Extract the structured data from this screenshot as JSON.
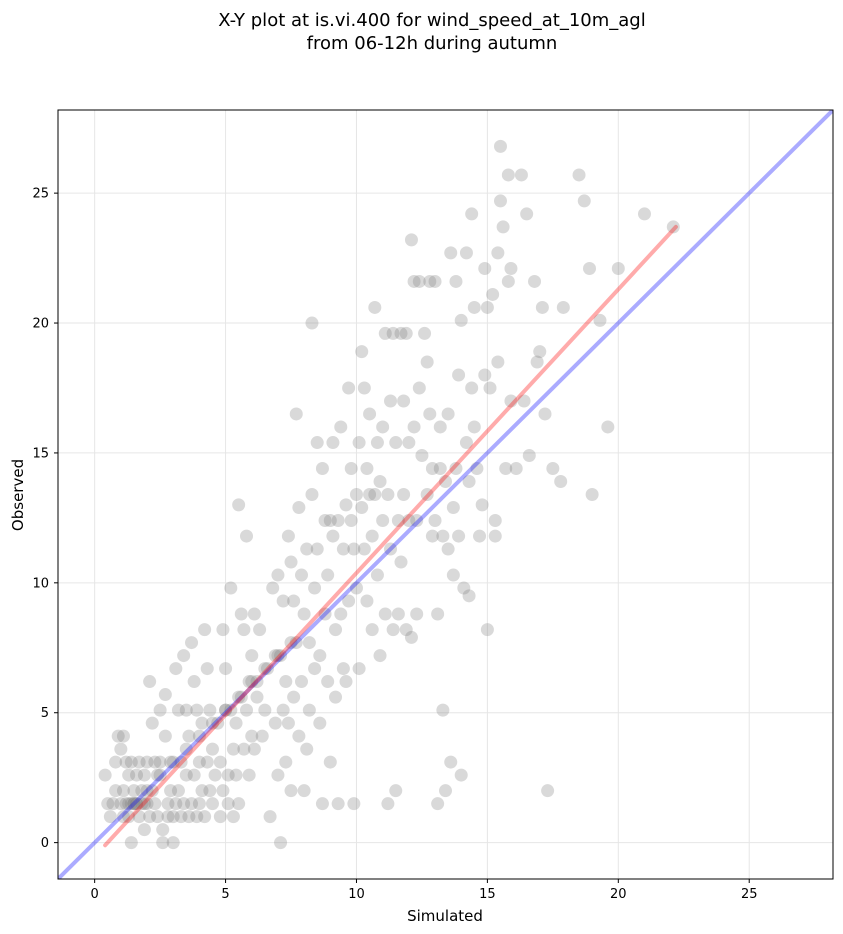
{
  "chart_data": {
    "type": "scatter",
    "title_line1": "X-Y plot at is.vi.400 for wind_speed_at_10m_agl",
    "title_line2": "from 06-12h during autumn",
    "xlabel": "Simulated",
    "ylabel": "Observed",
    "xlim": [
      -1.4,
      28.2
    ],
    "ylim": [
      -1.4,
      28.2
    ],
    "xticks": [
      0,
      5,
      10,
      15,
      20,
      25
    ],
    "yticks": [
      0,
      5,
      10,
      15,
      20,
      25
    ],
    "grid": true,
    "point_color": "#808080",
    "identity_line_color": "#0000ff",
    "fit_line_color": "#ff0000",
    "fit_line": {
      "x": [
        0.4,
        22.2
      ],
      "y": [
        -0.1,
        23.7
      ]
    },
    "points": [
      [
        0.4,
        2.6
      ],
      [
        0.5,
        1.5
      ],
      [
        0.6,
        1.0
      ],
      [
        0.7,
        1.5
      ],
      [
        0.8,
        3.1
      ],
      [
        0.8,
        2.0
      ],
      [
        0.9,
        4.1
      ],
      [
        1.0,
        1.5
      ],
      [
        1.0,
        3.6
      ],
      [
        1.1,
        1.0
      ],
      [
        1.1,
        4.1
      ],
      [
        1.1,
        2.0
      ],
      [
        1.2,
        1.5
      ],
      [
        1.2,
        3.1
      ],
      [
        1.3,
        2.6
      ],
      [
        1.3,
        1.0
      ],
      [
        1.4,
        0.0
      ],
      [
        1.4,
        3.1
      ],
      [
        1.5,
        2.0
      ],
      [
        1.5,
        1.5
      ],
      [
        1.6,
        2.6
      ],
      [
        1.6,
        1.5
      ],
      [
        1.7,
        3.1
      ],
      [
        1.7,
        1.0
      ],
      [
        1.8,
        2.0
      ],
      [
        1.8,
        1.5
      ],
      [
        1.9,
        0.5
      ],
      [
        1.9,
        2.6
      ],
      [
        2.0,
        3.1
      ],
      [
        2.0,
        1.5
      ],
      [
        2.1,
        1.0
      ],
      [
        2.1,
        6.2
      ],
      [
        2.2,
        2.0
      ],
      [
        2.2,
        4.6
      ],
      [
        2.3,
        1.5
      ],
      [
        2.3,
        3.1
      ],
      [
        2.4,
        1.0
      ],
      [
        2.4,
        2.6
      ],
      [
        2.5,
        3.1
      ],
      [
        2.5,
        5.1
      ],
      [
        2.6,
        0.5
      ],
      [
        2.6,
        0.0
      ],
      [
        2.7,
        4.1
      ],
      [
        2.7,
        5.7
      ],
      [
        2.8,
        1.5
      ],
      [
        2.8,
        1.0
      ],
      [
        2.9,
        3.1
      ],
      [
        2.9,
        2.0
      ],
      [
        3.0,
        1.0
      ],
      [
        3.0,
        0.0
      ],
      [
        3.1,
        6.7
      ],
      [
        3.1,
        1.5
      ],
      [
        3.2,
        2.0
      ],
      [
        3.2,
        5.1
      ],
      [
        3.3,
        1.0
      ],
      [
        3.3,
        3.1
      ],
      [
        3.4,
        7.2
      ],
      [
        3.4,
        1.5
      ],
      [
        3.5,
        2.6
      ],
      [
        3.5,
        5.1
      ],
      [
        3.6,
        1.0
      ],
      [
        3.6,
        4.1
      ],
      [
        3.7,
        7.7
      ],
      [
        3.7,
        1.5
      ],
      [
        3.8,
        2.6
      ],
      [
        3.8,
        6.2
      ],
      [
        3.9,
        1.0
      ],
      [
        3.9,
        5.1
      ],
      [
        4.0,
        3.1
      ],
      [
        4.0,
        1.5
      ],
      [
        4.1,
        2.0
      ],
      [
        4.1,
        4.6
      ],
      [
        4.2,
        8.2
      ],
      [
        4.2,
        1.0
      ],
      [
        4.3,
        3.1
      ],
      [
        4.3,
        6.7
      ],
      [
        4.4,
        2.0
      ],
      [
        4.4,
        5.1
      ],
      [
        4.5,
        1.5
      ],
      [
        4.5,
        3.6
      ],
      [
        4.6,
        2.6
      ],
      [
        4.7,
        4.6
      ],
      [
        4.8,
        1.0
      ],
      [
        4.8,
        3.1
      ],
      [
        4.9,
        8.2
      ],
      [
        4.9,
        2.0
      ],
      [
        5.0,
        5.1
      ],
      [
        5.0,
        6.7
      ],
      [
        5.1,
        2.6
      ],
      [
        5.1,
        1.5
      ],
      [
        5.2,
        9.8
      ],
      [
        5.2,
        5.1
      ],
      [
        5.3,
        3.6
      ],
      [
        5.3,
        1.0
      ],
      [
        5.4,
        2.6
      ],
      [
        5.4,
        4.6
      ],
      [
        5.5,
        1.5
      ],
      [
        5.5,
        13.0
      ],
      [
        5.6,
        8.8
      ],
      [
        5.6,
        5.6
      ],
      [
        5.7,
        3.6
      ],
      [
        5.7,
        8.2
      ],
      [
        5.8,
        5.1
      ],
      [
        5.8,
        11.8
      ],
      [
        5.9,
        6.2
      ],
      [
        5.9,
        2.6
      ],
      [
        6.0,
        7.2
      ],
      [
        6.0,
        4.1
      ],
      [
        6.1,
        8.8
      ],
      [
        6.1,
        3.6
      ],
      [
        6.2,
        6.2
      ],
      [
        6.2,
        5.6
      ],
      [
        6.3,
        8.2
      ],
      [
        6.4,
        4.1
      ],
      [
        6.5,
        5.1
      ],
      [
        6.6,
        6.7
      ],
      [
        6.7,
        1.0
      ],
      [
        6.8,
        9.8
      ],
      [
        6.9,
        7.2
      ],
      [
        6.9,
        4.6
      ],
      [
        7.0,
        10.3
      ],
      [
        7.0,
        2.6
      ],
      [
        7.1,
        7.2
      ],
      [
        7.1,
        0.0
      ],
      [
        7.2,
        9.3
      ],
      [
        7.2,
        5.1
      ],
      [
        7.3,
        6.2
      ],
      [
        7.3,
        3.1
      ],
      [
        7.4,
        11.8
      ],
      [
        7.4,
        4.6
      ],
      [
        7.5,
        10.8
      ],
      [
        7.5,
        2.0
      ],
      [
        7.6,
        9.3
      ],
      [
        7.6,
        5.6
      ],
      [
        7.7,
        16.5
      ],
      [
        7.7,
        7.7
      ],
      [
        7.8,
        12.9
      ],
      [
        7.8,
        4.1
      ],
      [
        7.9,
        10.3
      ],
      [
        7.9,
        6.2
      ],
      [
        8.0,
        8.8
      ],
      [
        8.0,
        2.0
      ],
      [
        8.1,
        11.3
      ],
      [
        8.1,
        3.6
      ],
      [
        8.2,
        7.7
      ],
      [
        8.2,
        5.1
      ],
      [
        8.3,
        20.0
      ],
      [
        8.3,
        13.4
      ],
      [
        8.4,
        9.8
      ],
      [
        8.4,
        6.7
      ],
      [
        8.5,
        15.4
      ],
      [
        8.5,
        11.3
      ],
      [
        8.6,
        7.2
      ],
      [
        8.6,
        4.6
      ],
      [
        8.7,
        14.4
      ],
      [
        8.7,
        1.5
      ],
      [
        8.8,
        12.4
      ],
      [
        8.8,
        8.8
      ],
      [
        8.9,
        10.3
      ],
      [
        8.9,
        6.2
      ],
      [
        9.0,
        12.4
      ],
      [
        9.0,
        3.1
      ],
      [
        9.1,
        15.4
      ],
      [
        9.1,
        11.8
      ],
      [
        9.2,
        8.2
      ],
      [
        9.2,
        5.6
      ],
      [
        9.3,
        12.4
      ],
      [
        9.3,
        1.5
      ],
      [
        9.4,
        16.0
      ],
      [
        9.4,
        8.8
      ],
      [
        9.5,
        11.3
      ],
      [
        9.5,
        6.7
      ],
      [
        9.6,
        13.0
      ],
      [
        9.6,
        6.2
      ],
      [
        9.7,
        17.5
      ],
      [
        9.7,
        9.3
      ],
      [
        9.8,
        14.4
      ],
      [
        9.8,
        12.4
      ],
      [
        9.9,
        11.3
      ],
      [
        9.9,
        1.5
      ],
      [
        10.0,
        13.4
      ],
      [
        10.0,
        9.8
      ],
      [
        10.1,
        15.4
      ],
      [
        10.1,
        6.7
      ],
      [
        10.2,
        18.9
      ],
      [
        10.2,
        12.9
      ],
      [
        10.3,
        17.5
      ],
      [
        10.3,
        11.3
      ],
      [
        10.4,
        14.4
      ],
      [
        10.4,
        9.3
      ],
      [
        10.5,
        16.5
      ],
      [
        10.5,
        13.4
      ],
      [
        10.6,
        11.8
      ],
      [
        10.6,
        8.2
      ],
      [
        10.7,
        20.6
      ],
      [
        10.7,
        13.4
      ],
      [
        10.8,
        15.4
      ],
      [
        10.8,
        10.3
      ],
      [
        10.9,
        13.9
      ],
      [
        10.9,
        7.2
      ],
      [
        11.0,
        16.0
      ],
      [
        11.0,
        12.4
      ],
      [
        11.1,
        19.6
      ],
      [
        11.1,
        8.8
      ],
      [
        11.2,
        13.4
      ],
      [
        11.2,
        1.5
      ],
      [
        11.3,
        17.0
      ],
      [
        11.3,
        11.3
      ],
      [
        11.4,
        19.6
      ],
      [
        11.4,
        8.2
      ],
      [
        11.5,
        15.4
      ],
      [
        11.5,
        2.0
      ],
      [
        11.6,
        12.4
      ],
      [
        11.6,
        8.8
      ],
      [
        11.7,
        19.6
      ],
      [
        11.7,
        10.8
      ],
      [
        11.8,
        17.0
      ],
      [
        11.8,
        13.4
      ],
      [
        11.9,
        19.6
      ],
      [
        11.9,
        8.2
      ],
      [
        12.0,
        15.4
      ],
      [
        12.0,
        12.4
      ],
      [
        12.1,
        23.2
      ],
      [
        12.1,
        7.9
      ],
      [
        12.2,
        21.6
      ],
      [
        12.2,
        16.0
      ],
      [
        12.3,
        12.4
      ],
      [
        12.3,
        8.8
      ],
      [
        12.4,
        21.6
      ],
      [
        12.4,
        17.5
      ],
      [
        12.5,
        14.9
      ],
      [
        12.6,
        19.6
      ],
      [
        12.7,
        18.5
      ],
      [
        12.7,
        13.4
      ],
      [
        12.8,
        21.6
      ],
      [
        12.8,
        16.5
      ],
      [
        12.9,
        14.4
      ],
      [
        12.9,
        11.8
      ],
      [
        13.0,
        21.6
      ],
      [
        13.0,
        12.4
      ],
      [
        13.1,
        1.5
      ],
      [
        13.1,
        8.8
      ],
      [
        13.2,
        16.0
      ],
      [
        13.2,
        14.4
      ],
      [
        13.3,
        11.8
      ],
      [
        13.3,
        5.1
      ],
      [
        13.4,
        13.9
      ],
      [
        13.4,
        2.0
      ],
      [
        13.5,
        16.5
      ],
      [
        13.5,
        11.3
      ],
      [
        13.6,
        22.7
      ],
      [
        13.6,
        3.1
      ],
      [
        13.7,
        12.9
      ],
      [
        13.7,
        10.3
      ],
      [
        13.8,
        21.6
      ],
      [
        13.8,
        14.4
      ],
      [
        13.9,
        18.0
      ],
      [
        13.9,
        11.8
      ],
      [
        14.0,
        20.1
      ],
      [
        14.0,
        2.6
      ],
      [
        14.1,
        9.8
      ],
      [
        14.2,
        22.7
      ],
      [
        14.2,
        15.4
      ],
      [
        14.3,
        13.9
      ],
      [
        14.3,
        9.5
      ],
      [
        14.4,
        24.2
      ],
      [
        14.4,
        17.5
      ],
      [
        14.5,
        20.6
      ],
      [
        14.5,
        16.0
      ],
      [
        14.6,
        14.4
      ],
      [
        14.7,
        11.8
      ],
      [
        14.8,
        13.0
      ],
      [
        14.9,
        22.1
      ],
      [
        14.9,
        18.0
      ],
      [
        15.0,
        20.6
      ],
      [
        15.0,
        8.2
      ],
      [
        15.1,
        17.5
      ],
      [
        15.2,
        21.1
      ],
      [
        15.3,
        12.4
      ],
      [
        15.3,
        11.8
      ],
      [
        15.4,
        22.7
      ],
      [
        15.4,
        18.5
      ],
      [
        15.5,
        24.7
      ],
      [
        15.5,
        26.8
      ],
      [
        15.6,
        23.7
      ],
      [
        15.7,
        14.4
      ],
      [
        15.8,
        25.7
      ],
      [
        15.8,
        21.6
      ],
      [
        15.9,
        17.0
      ],
      [
        15.9,
        22.1
      ],
      [
        16.1,
        14.4
      ],
      [
        16.3,
        25.7
      ],
      [
        16.4,
        17.0
      ],
      [
        16.5,
        24.2
      ],
      [
        16.6,
        14.9
      ],
      [
        16.8,
        21.6
      ],
      [
        16.9,
        18.5
      ],
      [
        17.0,
        18.9
      ],
      [
        17.1,
        20.6
      ],
      [
        17.2,
        16.5
      ],
      [
        17.3,
        2.0
      ],
      [
        17.5,
        14.4
      ],
      [
        17.8,
        13.9
      ],
      [
        17.9,
        20.6
      ],
      [
        18.5,
        25.7
      ],
      [
        18.7,
        24.7
      ],
      [
        18.9,
        22.1
      ],
      [
        19.0,
        13.4
      ],
      [
        19.3,
        20.1
      ],
      [
        19.6,
        16.0
      ],
      [
        20.0,
        22.1
      ],
      [
        21.0,
        24.2
      ],
      [
        22.1,
        23.7
      ],
      [
        1.3,
        1.5
      ],
      [
        1.6,
        1.5
      ],
      [
        2.0,
        2.0
      ],
      [
        2.5,
        2.6
      ],
      [
        3.0,
        3.1
      ],
      [
        3.5,
        3.6
      ],
      [
        4.0,
        4.1
      ],
      [
        4.5,
        4.6
      ],
      [
        5.0,
        5.1
      ],
      [
        5.5,
        5.6
      ],
      [
        6.0,
        6.2
      ],
      [
        6.5,
        6.7
      ],
      [
        7.0,
        7.2
      ],
      [
        7.5,
        7.7
      ],
      [
        1.9,
        1.5
      ],
      [
        1.5,
        1.5
      ],
      [
        1.4,
        1.5
      ]
    ]
  }
}
